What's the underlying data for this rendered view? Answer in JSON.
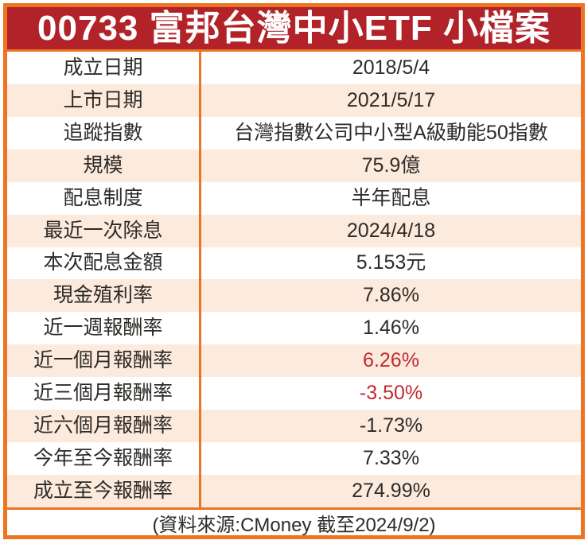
{
  "header": {
    "title": "00733 富邦台灣中小ETF 小檔案"
  },
  "table": {
    "rows": [
      {
        "label": "成立日期",
        "value": "2018/5/4"
      },
      {
        "label": "上市日期",
        "value": "2021/5/17"
      },
      {
        "label": "追蹤指數",
        "value": "台灣指數公司中小型A級動能50指數"
      },
      {
        "label": "規模",
        "value": "75.9億"
      },
      {
        "label": "配息制度",
        "value": "半年配息"
      },
      {
        "label": "最近一次除息",
        "value": "2024/4/18"
      },
      {
        "label": "本次配息金額",
        "value": "5.153元"
      },
      {
        "label": "現金殖利率",
        "value": "7.86%"
      },
      {
        "label": "近一週報酬率",
        "value": "1.46%"
      },
      {
        "label": "近一個月報酬率",
        "value": "6.26%",
        "value_color": "highlight_red"
      },
      {
        "label": "近三個月報酬率",
        "value": "-3.50%",
        "value_color": "highlight_red"
      },
      {
        "label": "近六個月報酬率",
        "value": "-1.73%"
      },
      {
        "label": "今年至今報酬率",
        "value": "7.33%"
      },
      {
        "label": "成立至今報酬率",
        "value": "274.99%"
      }
    ]
  },
  "footer": {
    "source_note": "(資料來源:CMoney 截至2024/9/2)"
  },
  "colors": {
    "border_orange": "#ec7423",
    "header_red": "#b12329",
    "row_alt_peach": "#fceadd",
    "text_dark": "#2e2b28",
    "highlight_red": "#c02b31",
    "title_white": "#ffffff"
  }
}
